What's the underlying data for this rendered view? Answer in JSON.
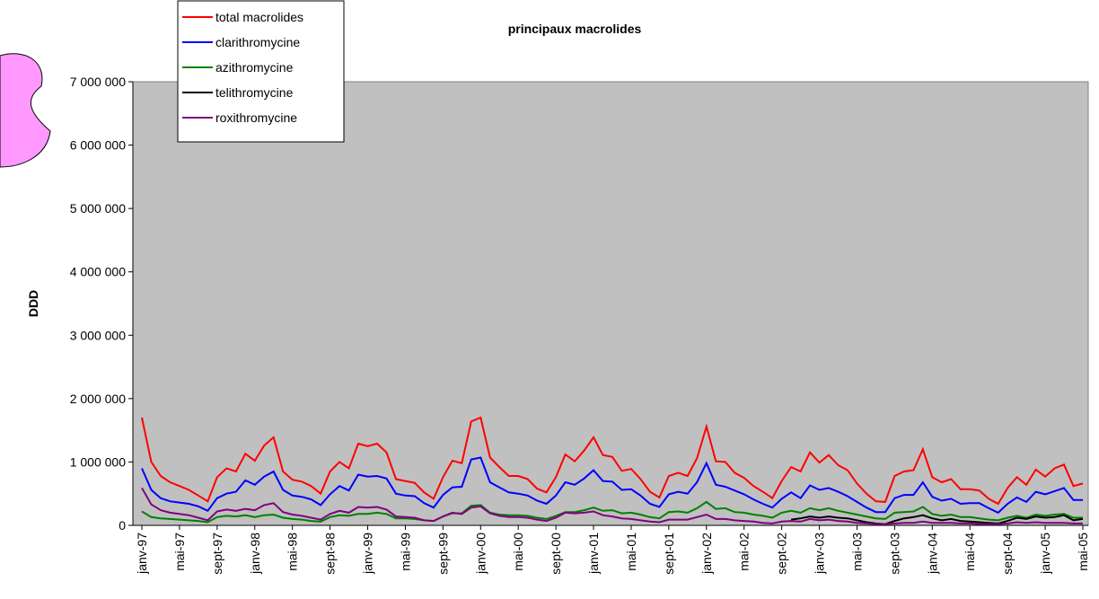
{
  "chart_data": {
    "type": "line",
    "title": "principaux macrolides",
    "y_label": "DDD",
    "categories": [
      "janv-97",
      null,
      null,
      null,
      "mai-97",
      null,
      null,
      null,
      "sept-97",
      null,
      null,
      null,
      "janv-98",
      null,
      null,
      null,
      "mai-98",
      null,
      null,
      null,
      "sept-98",
      null,
      null,
      null,
      "janv-99",
      null,
      null,
      null,
      "mai-99",
      null,
      null,
      null,
      "sept-99",
      null,
      null,
      null,
      "janv-00",
      null,
      null,
      null,
      "mai-00",
      null,
      null,
      null,
      "sept-00",
      null,
      null,
      null,
      "janv-01",
      null,
      null,
      null,
      "mai-01",
      null,
      null,
      null,
      "sept-01",
      null,
      null,
      null,
      "janv-02",
      null,
      null,
      null,
      "mai-02",
      null,
      null,
      null,
      "sept-02",
      null,
      null,
      null,
      "janv-03",
      null,
      null,
      null,
      "mai-03",
      null,
      null,
      null,
      "sept-03",
      null,
      null,
      null,
      "janv-04",
      null,
      null,
      null,
      "mai-04",
      null,
      null,
      null,
      "sept-04",
      null,
      null,
      null,
      "janv-05",
      null,
      null,
      null,
      "mai-05"
    ],
    "series": [
      {
        "name": "total macrolides",
        "color": "#ff0000",
        "values": [
          1700000,
          1000000,
          780000,
          680000,
          620000,
          560000,
          470000,
          380000,
          760000,
          900000,
          850000,
          1130000,
          1020000,
          1260000,
          1390000,
          850000,
          720000,
          690000,
          620000,
          500000,
          850000,
          1000000,
          900000,
          1290000,
          1250000,
          1290000,
          1150000,
          730000,
          700000,
          670000,
          520000,
          420000,
          760000,
          1020000,
          980000,
          1640000,
          1700000,
          1070000,
          920000,
          780000,
          780000,
          730000,
          580000,
          520000,
          760000,
          1120000,
          1010000,
          1180000,
          1390000,
          1110000,
          1080000,
          860000,
          890000,
          730000,
          530000,
          440000,
          780000,
          830000,
          780000,
          1060000,
          1560000,
          1010000,
          1000000,
          830000,
          750000,
          620000,
          530000,
          430000,
          700000,
          920000,
          850000,
          1150000,
          990000,
          1110000,
          950000,
          870000,
          660000,
          500000,
          380000,
          370000,
          780000,
          850000,
          870000,
          1200000,
          760000,
          680000,
          730000,
          570000,
          570000,
          550000,
          420000,
          340000,
          590000,
          760000,
          640000,
          880000,
          770000,
          900000,
          960000,
          620000,
          660000
        ]
      },
      {
        "name": "clarithromycine",
        "color": "#0000ff",
        "values": [
          900000,
          560000,
          430000,
          380000,
          360000,
          340000,
          300000,
          230000,
          430000,
          500000,
          530000,
          710000,
          640000,
          770000,
          850000,
          560000,
          470000,
          450000,
          410000,
          320000,
          490000,
          620000,
          550000,
          800000,
          770000,
          780000,
          740000,
          500000,
          470000,
          460000,
          350000,
          280000,
          480000,
          600000,
          610000,
          1040000,
          1070000,
          680000,
          600000,
          520000,
          500000,
          470000,
          390000,
          340000,
          470000,
          680000,
          640000,
          740000,
          870000,
          700000,
          690000,
          560000,
          570000,
          470000,
          340000,
          290000,
          490000,
          530000,
          500000,
          680000,
          980000,
          640000,
          610000,
          550000,
          490000,
          410000,
          340000,
          280000,
          420000,
          520000,
          430000,
          630000,
          560000,
          590000,
          530000,
          460000,
          370000,
          280000,
          210000,
          210000,
          430000,
          480000,
          480000,
          680000,
          450000,
          390000,
          420000,
          340000,
          350000,
          350000,
          270000,
          200000,
          340000,
          440000,
          370000,
          530000,
          490000,
          540000,
          590000,
          400000,
          400000
        ]
      },
      {
        "name": "azithromycine",
        "color": "#008000",
        "values": [
          220000,
          130000,
          110000,
          100000,
          90000,
          80000,
          70000,
          50000,
          130000,
          150000,
          140000,
          160000,
          130000,
          160000,
          170000,
          120000,
          100000,
          90000,
          70000,
          60000,
          130000,
          160000,
          150000,
          180000,
          180000,
          200000,
          180000,
          110000,
          110000,
          100000,
          80000,
          70000,
          140000,
          190000,
          190000,
          310000,
          320000,
          200000,
          170000,
          160000,
          160000,
          150000,
          120000,
          100000,
          150000,
          210000,
          210000,
          240000,
          280000,
          230000,
          240000,
          190000,
          200000,
          170000,
          130000,
          110000,
          210000,
          220000,
          200000,
          270000,
          370000,
          260000,
          270000,
          210000,
          200000,
          170000,
          150000,
          120000,
          200000,
          230000,
          200000,
          270000,
          240000,
          270000,
          230000,
          200000,
          170000,
          140000,
          110000,
          100000,
          200000,
          210000,
          220000,
          290000,
          180000,
          150000,
          170000,
          130000,
          130000,
          110000,
          90000,
          80000,
          120000,
          150000,
          120000,
          170000,
          150000,
          170000,
          180000,
          120000,
          120000
        ]
      },
      {
        "name": "telithromycine",
        "color": "#000000",
        "values": [
          null,
          null,
          null,
          null,
          null,
          null,
          null,
          null,
          null,
          null,
          null,
          null,
          null,
          null,
          null,
          null,
          null,
          null,
          null,
          null,
          null,
          null,
          null,
          null,
          null,
          null,
          null,
          null,
          null,
          null,
          null,
          null,
          null,
          null,
          null,
          null,
          null,
          null,
          null,
          null,
          null,
          null,
          null,
          null,
          null,
          null,
          null,
          null,
          null,
          null,
          null,
          null,
          null,
          null,
          null,
          null,
          null,
          null,
          null,
          null,
          null,
          null,
          null,
          null,
          null,
          null,
          null,
          null,
          null,
          90000,
          110000,
          140000,
          120000,
          140000,
          120000,
          110000,
          80000,
          50000,
          30000,
          20000,
          70000,
          110000,
          130000,
          160000,
          110000,
          80000,
          100000,
          70000,
          60000,
          50000,
          40000,
          30000,
          70000,
          120000,
          100000,
          140000,
          120000,
          130000,
          160000,
          80000,
          100000
        ]
      },
      {
        "name": "roxithromycine",
        "color": "#800080",
        "values": [
          590000,
          330000,
          240000,
          200000,
          180000,
          160000,
          120000,
          80000,
          220000,
          250000,
          230000,
          260000,
          240000,
          320000,
          350000,
          210000,
          170000,
          150000,
          120000,
          90000,
          180000,
          230000,
          200000,
          290000,
          280000,
          290000,
          250000,
          140000,
          130000,
          120000,
          80000,
          70000,
          140000,
          200000,
          180000,
          280000,
          300000,
          190000,
          150000,
          130000,
          130000,
          120000,
          90000,
          70000,
          120000,
          200000,
          190000,
          200000,
          220000,
          160000,
          140000,
          110000,
          100000,
          80000,
          60000,
          50000,
          90000,
          90000,
          90000,
          130000,
          170000,
          100000,
          100000,
          80000,
          70000,
          60000,
          40000,
          30000,
          60000,
          70000,
          60000,
          100000,
          80000,
          90000,
          70000,
          60000,
          40000,
          30000,
          20000,
          20000,
          30000,
          40000,
          40000,
          60000,
          40000,
          40000,
          40000,
          30000,
          30000,
          20000,
          20000,
          20000,
          30000,
          50000,
          40000,
          50000,
          40000,
          40000,
          40000,
          30000,
          30000
        ]
      }
    ],
    "ylim": [
      0,
      7000000
    ],
    "yticks": [
      0,
      {
        "value": 1000000,
        "label": "1 000 000"
      },
      {
        "value": 2000000,
        "label": "2 000 000"
      },
      {
        "value": 3000000,
        "label": "3 000 000"
      },
      {
        "value": 4000000,
        "label": "4 000 000"
      },
      {
        "value": 5000000,
        "label": "5 000 000"
      },
      {
        "value": 6000000,
        "label": "6 000 000"
      },
      {
        "value": 7000000,
        "label": "7 000 000"
      }
    ],
    "plot_background": "#c0c0c0"
  }
}
